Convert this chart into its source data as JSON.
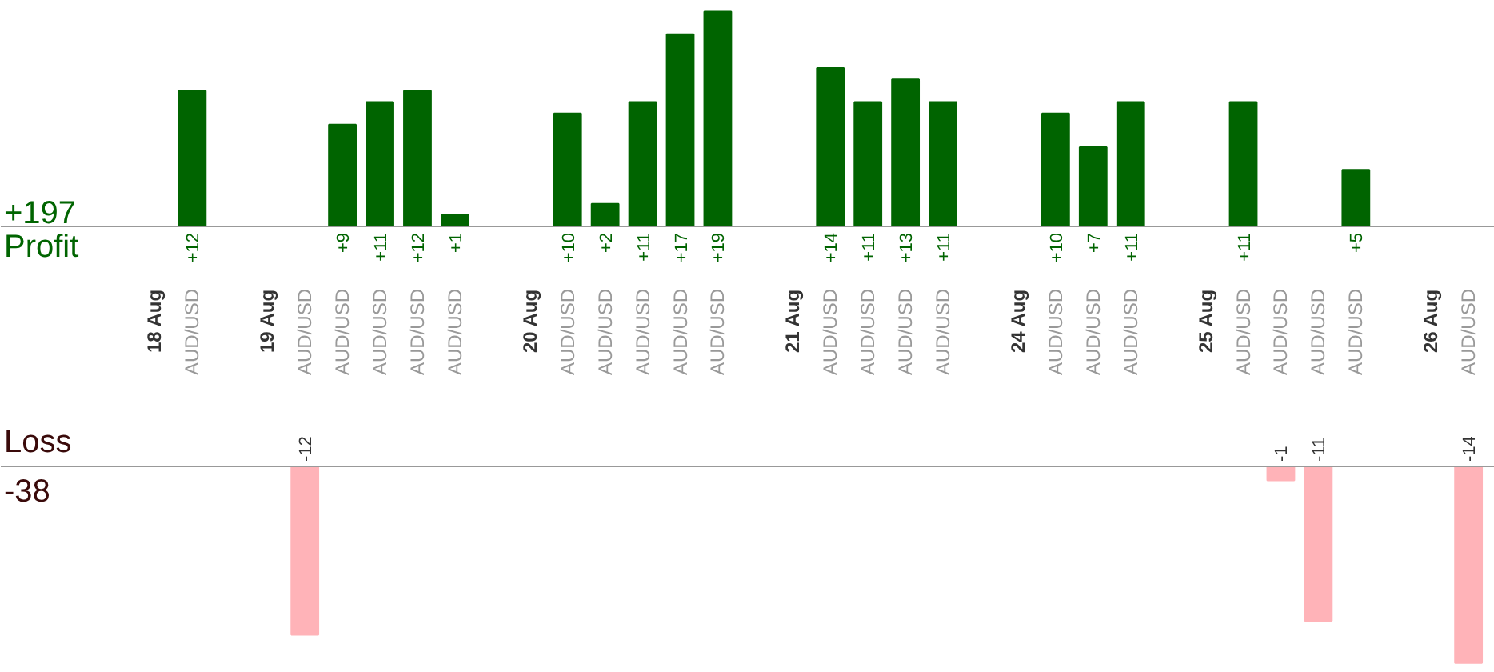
{
  "chart_data": [
    {
      "type": "bar",
      "ylabel": "Profit",
      "annotations": [
        "+197"
      ],
      "tick_labels": "x",
      "color": "#006400",
      "categories": [
        "18 Aug",
        "AUD/USD",
        null,
        "19 Aug",
        "AUD/USD",
        "AUD/USD",
        "AUD/USD",
        "AUD/USD",
        "AUD/USD",
        null,
        "20 Aug",
        "AUD/USD",
        "AUD/USD",
        "AUD/USD",
        "AUD/USD",
        "AUD/USD",
        null,
        "21 Aug",
        "AUD/USD",
        "AUD/USD",
        "AUD/USD",
        "AUD/USD",
        null,
        "24 Aug",
        "AUD/USD",
        "AUD/USD",
        "AUD/USD",
        null,
        "25 Aug",
        "AUD/USD",
        "AUD/USD",
        "AUD/USD",
        "AUD/USD",
        null,
        "26 Aug",
        "AUD/USD"
      ],
      "values": [
        null,
        12,
        null,
        null,
        null,
        9,
        11,
        12,
        1,
        null,
        null,
        10,
        2,
        11,
        17,
        19,
        null,
        null,
        14,
        11,
        13,
        11,
        null,
        null,
        10,
        7,
        11,
        null,
        null,
        11,
        null,
        null,
        5,
        null,
        null,
        null
      ],
      "value_labels": [
        null,
        "+12",
        null,
        null,
        null,
        "+9",
        "+11",
        "+12",
        "+1",
        null,
        null,
        "+10",
        "+2",
        "+11",
        "+17",
        "+19",
        null,
        null,
        "+14",
        "+11",
        "+13",
        "+11",
        null,
        null,
        "+10",
        "+7",
        "+11",
        null,
        null,
        "+11",
        null,
        null,
        "+5",
        null,
        null,
        null
      ]
    },
    {
      "type": "bar",
      "ylabel": "Loss",
      "annotations": [
        "-38"
      ],
      "tick_labels": false,
      "color": "#ffb3b8",
      "data_labels": true,
      "values": [
        null,
        null,
        null,
        null,
        -12,
        null,
        null,
        null,
        null,
        null,
        null,
        null,
        null,
        null,
        null,
        null,
        null,
        null,
        null,
        null,
        null,
        null,
        null,
        null,
        null,
        null,
        null,
        null,
        null,
        null,
        -1,
        -11,
        null,
        null,
        null,
        -14
      ]
    }
  ]
}
